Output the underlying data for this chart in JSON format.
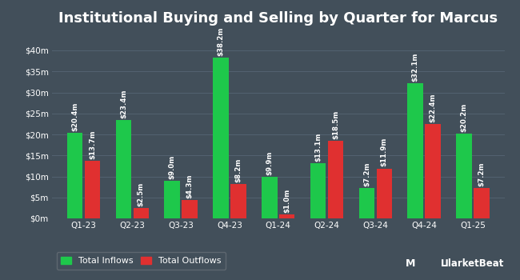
{
  "title": "Institutional Buying and Selling by Quarter for Marcus",
  "quarters": [
    "Q1-23",
    "Q2-23",
    "Q3-23",
    "Q4-23",
    "Q1-24",
    "Q2-24",
    "Q3-24",
    "Q4-24",
    "Q1-25"
  ],
  "inflows": [
    20.4,
    23.4,
    9.0,
    38.2,
    9.9,
    13.1,
    7.2,
    32.1,
    20.2
  ],
  "outflows": [
    13.7,
    2.5,
    4.3,
    8.2,
    1.0,
    18.5,
    11.9,
    22.4,
    7.2
  ],
  "inflow_labels": [
    "$20.4m",
    "$23.4m",
    "$9.0m",
    "$38.2m",
    "$9.9m",
    "$13.1m",
    "$7.2m",
    "$32.1m",
    "$20.2m"
  ],
  "outflow_labels": [
    "$13.7m",
    "$2.5m",
    "$4.3m",
    "$8.2m",
    "$1.0m",
    "$18.5m",
    "$11.9m",
    "$22.4m",
    "$7.2m"
  ],
  "inflow_color": "#1ec84b",
  "outflow_color": "#e03030",
  "background_color": "#424f5a",
  "grid_color": "#536270",
  "text_color": "#ffffff",
  "ylabel_ticks": [
    "$0m",
    "$5m",
    "$10m",
    "$15m",
    "$20m",
    "$25m",
    "$30m",
    "$35m",
    "$40m"
  ],
  "ytick_values": [
    0,
    5,
    10,
    15,
    20,
    25,
    30,
    35,
    40
  ],
  "ylim": [
    0,
    44
  ],
  "bar_width": 0.32,
  "title_fontsize": 13,
  "tick_fontsize": 7.5,
  "label_fontsize": 6.2,
  "legend_fontsize": 8
}
